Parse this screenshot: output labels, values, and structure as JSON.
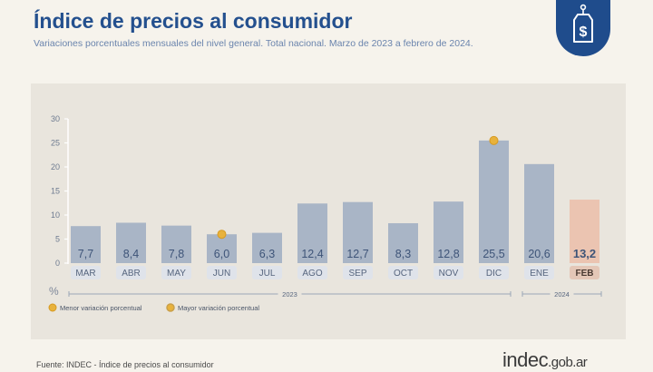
{
  "title": "Índice de precios al consumidor",
  "subtitle": "Variaciones porcentuales mensuales del nivel general. Total nacional. Marzo de 2023 a febrero de 2024.",
  "source": "Fuente: INDEC - Índice de precios al consumidor",
  "logo": {
    "main": "indec",
    "suffix": ".gob.ar"
  },
  "badge_icon": "price-tag-dollar-icon",
  "colors": {
    "bar": "#a9b5c6",
    "highlight_bar": "#ebc4b1",
    "marker": "#e8b23c",
    "label_bg": "#dfe3ea",
    "highlight_label_bg": "#e4c7b7",
    "value_text": "#3e5478",
    "title": "#24508e"
  },
  "chart_data": {
    "type": "bar",
    "ylabel": "%",
    "ylim": [
      0,
      30
    ],
    "yticks": [
      0,
      5,
      10,
      15,
      20,
      25,
      30
    ],
    "categories": [
      "MAR",
      "ABR",
      "MAY",
      "JUN",
      "JUL",
      "AGO",
      "SEP",
      "OCT",
      "NOV",
      "DIC",
      "ENE",
      "FEB"
    ],
    "values": [
      7.7,
      8.4,
      7.8,
      6.0,
      6.3,
      12.4,
      12.7,
      8.3,
      12.8,
      25.5,
      20.6,
      13.2
    ],
    "value_labels": [
      "7,7",
      "8,4",
      "7,8",
      "6,0",
      "6,3",
      "12,4",
      "12,7",
      "8,3",
      "12,8",
      "25,5",
      "20,6",
      "13,2"
    ],
    "highlight_index": 11,
    "year_groups": [
      {
        "label": "2023",
        "start": 0,
        "end": 9
      },
      {
        "label": "2024",
        "start": 10,
        "end": 11
      }
    ],
    "markers": [
      {
        "index": 3,
        "type": "min"
      },
      {
        "index": 9,
        "type": "max"
      }
    ],
    "legend": [
      {
        "type": "min",
        "label": "Menor variación porcentual"
      },
      {
        "type": "max",
        "label": "Mayor variación porcentual"
      }
    ],
    "legend_position": "bottom-left",
    "grid": false
  }
}
